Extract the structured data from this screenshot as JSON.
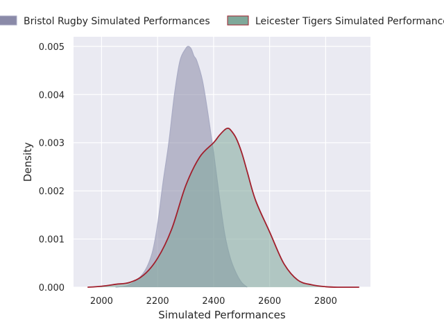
{
  "chart_data": {
    "type": "area",
    "title": "",
    "xlabel": "Simulated Performances",
    "ylabel": "Density",
    "xlim": [
      1900,
      2960
    ],
    "ylim": [
      0,
      0.0052
    ],
    "xticks": [
      2000,
      2200,
      2400,
      2600,
      2800
    ],
    "yticks": [
      0.0,
      0.001,
      0.002,
      0.003,
      0.004,
      0.005
    ],
    "ytick_labels": [
      "0.000",
      "0.001",
      "0.002",
      "0.003",
      "0.004",
      "0.005"
    ],
    "grid": true,
    "legend_position": "top",
    "series": [
      {
        "name": "Bristol Rugby Simulated Performances",
        "fill_color": "#8a8aa8",
        "line_color": "#a9abc4",
        "x": [
          2050,
          2100,
          2150,
          2180,
          2200,
          2220,
          2240,
          2260,
          2280,
          2300,
          2310,
          2320,
          2330,
          2340,
          2360,
          2380,
          2400,
          2420,
          2440,
          2460,
          2480,
          2500,
          2520
        ],
        "y": [
          0.0,
          5e-05,
          0.0003,
          0.0007,
          0.0013,
          0.0022,
          0.003,
          0.004,
          0.0047,
          0.00495,
          0.005,
          0.00495,
          0.0048,
          0.0047,
          0.0043,
          0.0036,
          0.0028,
          0.0019,
          0.0011,
          0.0006,
          0.0003,
          0.0001,
          0.0
        ]
      },
      {
        "name": "Leicester Tigers Simulated Performances",
        "fill_color": "#7fa89a",
        "line_color": "#a11f2c",
        "x": [
          1950,
          2000,
          2050,
          2100,
          2150,
          2200,
          2250,
          2300,
          2350,
          2400,
          2420,
          2440,
          2450,
          2460,
          2480,
          2500,
          2520,
          2550,
          2600,
          2650,
          2700,
          2750,
          2800,
          2850,
          2920
        ],
        "y": [
          0.0,
          2e-05,
          6e-05,
          0.0001,
          0.00025,
          0.0006,
          0.0012,
          0.0021,
          0.0027,
          0.003,
          0.00315,
          0.00327,
          0.0033,
          0.00327,
          0.0031,
          0.0028,
          0.0024,
          0.0018,
          0.00115,
          0.0005,
          0.00015,
          5e-05,
          1e-05,
          0.0,
          0.0
        ]
      }
    ]
  }
}
